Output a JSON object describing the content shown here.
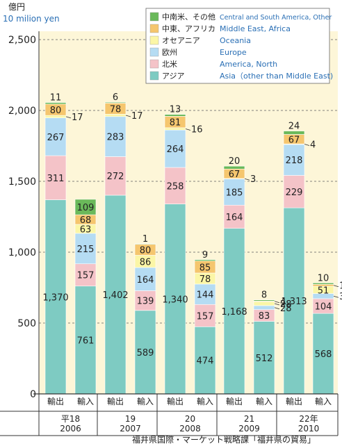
{
  "chart_data": {
    "type": "bar",
    "stacked": true,
    "unit_primary": "億円",
    "unit_secondary": "10 milion yen",
    "ylim": [
      0,
      2500
    ],
    "yticks": [
      0,
      500,
      1000,
      1500,
      2000,
      2500
    ],
    "ytick_labels": [
      "0",
      "500",
      "1,000",
      "1,500",
      "2,000",
      "2,500"
    ],
    "grid": true,
    "legend_position": "top-right",
    "categories": [
      "輸出",
      "輸入",
      "輸出",
      "輸入",
      "輸出",
      "輸入",
      "輸出",
      "輸入",
      "輸出",
      "輸入"
    ],
    "groups": [
      {
        "label": "平18",
        "label2": "2006"
      },
      {
        "label": "19",
        "label2": "2007"
      },
      {
        "label": "20",
        "label2": "2008"
      },
      {
        "label": "21",
        "label2": "2009"
      },
      {
        "label": "22年",
        "label2": "2010"
      }
    ],
    "series": [
      {
        "name": "アジア",
        "name_en": "Asia（other than Middle East)",
        "color": "#7ecbc2",
        "values": [
          1370,
          761,
          1402,
          589,
          1340,
          474,
          1168,
          512,
          1313,
          568
        ],
        "labels": [
          "1,370",
          "761",
          "1,402",
          "589",
          "1,340",
          "474",
          "1,168",
          "512",
          "1,313",
          "568"
        ]
      },
      {
        "name": "北米",
        "name_en": "America, North",
        "color": "#f4c3c8",
        "values": [
          311,
          157,
          272,
          139,
          258,
          157,
          164,
          83,
          229,
          104
        ],
        "labels": [
          "311",
          "157",
          "272",
          "139",
          "258",
          "157",
          "164",
          "83",
          "229",
          "104"
        ]
      },
      {
        "name": "欧州",
        "name_en": "Europe",
        "color": "#b5dcf3",
        "values": [
          267,
          215,
          283,
          164,
          264,
          144,
          185,
          28,
          218,
          36
        ],
        "labels": [
          "267",
          "215",
          "283",
          "164",
          "264",
          "144",
          "185",
          "28",
          "218",
          "36"
        ]
      },
      {
        "name": "オセアニア",
        "name_en": "Oceania",
        "color": "#fbf6a6",
        "values": [
          17,
          63,
          17,
          86,
          16,
          78,
          3,
          28,
          4,
          51
        ],
        "labels": [
          "17",
          "63",
          "17",
          "86",
          "16",
          "78",
          "3",
          "28",
          "4",
          "51"
        ]
      },
      {
        "name": "中東、アフリカ",
        "name_en": "Middle East, Africa",
        "color": "#f5c66e",
        "values": [
          80,
          68,
          78,
          80,
          81,
          85,
          67,
          4,
          67,
          14
        ],
        "labels": [
          "80",
          "68",
          "78",
          "80",
          "81",
          "85",
          "67",
          "4",
          "67",
          "14"
        ]
      },
      {
        "name": "中南米、その他",
        "name_en": "Central and South America, Other",
        "color": "#6ab95a",
        "values": [
          11,
          109,
          6,
          1,
          13,
          9,
          20,
          8,
          24,
          10
        ],
        "labels": [
          "11",
          "109",
          "6",
          "1",
          "13",
          "9",
          "20",
          "8",
          "24",
          "10"
        ]
      }
    ],
    "background_color": "#fdf6d8",
    "text_color": "#222222",
    "legend_en_color": "#2a6fb5"
  },
  "source": "福井県国際・マーケット戦略課「福井県の貿易」"
}
